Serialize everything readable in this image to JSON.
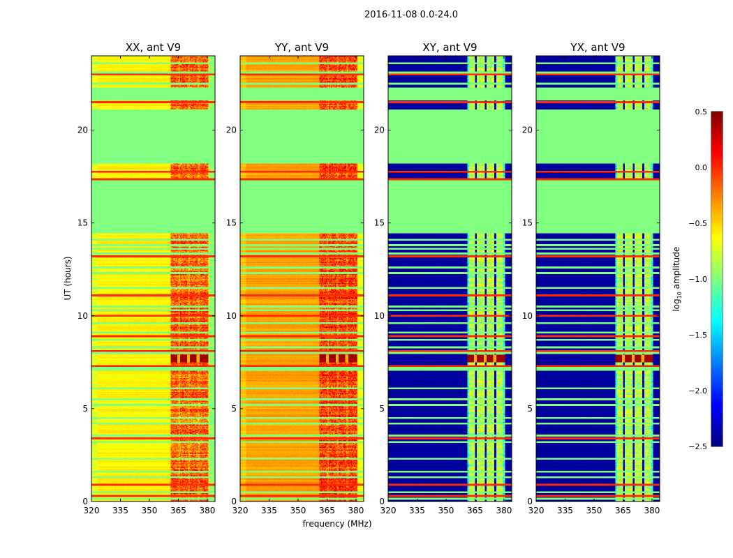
{
  "figure_title": "2016-11-08 0.0-24.0",
  "chart_data": {
    "type": "heatmap",
    "title": "2016-11-08 0.0-24.0",
    "xlabel": "frequency (MHz)",
    "ylabel": "UT (hours)",
    "xlim": [
      320,
      384
    ],
    "ylim": [
      0,
      24
    ],
    "xticks": [
      320,
      335,
      350,
      365,
      380
    ],
    "yticks": [
      0,
      5,
      10,
      15,
      20
    ],
    "colormap": "jet",
    "colorbar": {
      "label_prefix": "log",
      "label_sub": "10",
      "label_suffix": " amplitude",
      "range": [
        -2.5,
        0.5
      ],
      "ticks": [
        "−2.5",
        "−2.0",
        "−1.5",
        "−1.0",
        "−0.5",
        "0.0",
        "0.5"
      ],
      "tick_values": [
        -2.5,
        -2.0,
        -1.5,
        -1.0,
        -0.5,
        0.0,
        0.5
      ]
    },
    "panels": [
      {
        "title": "XX, ant V9",
        "base_level": -0.6,
        "rfi_level": -0.15
      },
      {
        "title": "YY, ant V9",
        "base_level": -0.35,
        "rfi_level": -0.05
      },
      {
        "title": "XY, ant V9",
        "base_level": -2.45,
        "rfi_level": -0.85
      },
      {
        "title": "YX, ant V9",
        "base_level": -2.45,
        "rfi_level": -0.85
      }
    ],
    "rfi_band_mhz": [
      361,
      380.5
    ],
    "rfi_gaps_mhz": [
      365.3,
      370.3,
      375.3
    ],
    "flagged_bands_hours": [
      [
        14.45,
        17.3
      ],
      [
        18.2,
        21.1
      ],
      [
        21.6,
        22.3
      ]
    ],
    "flagged_level": -1.0,
    "flagged_lines_hours": [
      0.15,
      0.5,
      1.3,
      1.6,
      2.3,
      3.2,
      3.55,
      4.2,
      4.5,
      5.2,
      5.5,
      6.1,
      7.1,
      7.2,
      8.0,
      8.3,
      8.7,
      9.1,
      9.6,
      10.3,
      10.5,
      11.5,
      12.3,
      12.6,
      13.35,
      13.6,
      13.8,
      14.1,
      22.5,
      23.1,
      23.6
    ],
    "strong_lines_hours": [
      0.3,
      0.9,
      3.4,
      7.3,
      8.1,
      8.9,
      10.0,
      11.1,
      13.2,
      17.35,
      17.75,
      21.5,
      23.0
    ],
    "strong_level": 0.0,
    "burst_hours": [
      7.5,
      7.9
    ],
    "burst_level": 0.4
  }
}
